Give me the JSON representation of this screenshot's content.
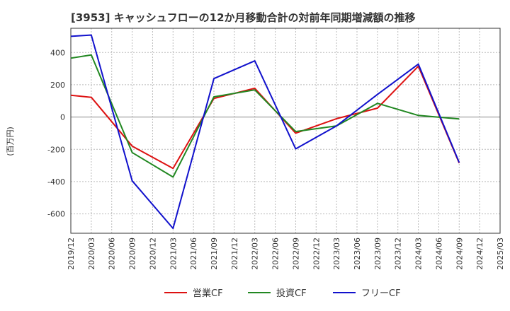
{
  "chart_data": {
    "type": "line",
    "title": "[3953]  キャッシュフローの12か月移動合計の対前年同期増減額の推移",
    "ylabel": "(百万円)",
    "xlabel": "",
    "ylim": [
      -720,
      550
    ],
    "yticks": [
      -600,
      -400,
      -200,
      0,
      200,
      400
    ],
    "grid": true,
    "legend_position": "bottom",
    "x": [
      "2019/12",
      "2020/03",
      "2020/06",
      "2020/09",
      "2020/12",
      "2021/03",
      "2021/06",
      "2021/09",
      "2021/12",
      "2022/03",
      "2022/06",
      "2022/09",
      "2022/12",
      "2023/03",
      "2023/06",
      "2023/09",
      "2023/12",
      "2024/03",
      "2024/06",
      "2024/09",
      "2024/12",
      "2025/03"
    ],
    "series": [
      {
        "name": "営業CF",
        "color": "#dd1111",
        "values": [
          135,
          122,
          null,
          -180,
          null,
          -318,
          null,
          115,
          null,
          178,
          null,
          -100,
          null,
          -10,
          null,
          55,
          null,
          315,
          null,
          -285,
          null,
          null
        ]
      },
      {
        "name": "投資CF",
        "color": "#228822",
        "values": [
          365,
          385,
          null,
          -220,
          null,
          -372,
          null,
          125,
          null,
          168,
          null,
          -90,
          null,
          -55,
          null,
          85,
          null,
          10,
          null,
          -12,
          null,
          null
        ]
      },
      {
        "name": "フリーCF",
        "color": "#1111cc",
        "values": [
          500,
          508,
          null,
          -395,
          null,
          -690,
          null,
          238,
          null,
          348,
          null,
          -197,
          null,
          -55,
          null,
          140,
          null,
          328,
          null,
          -282,
          null,
          null
        ]
      }
    ]
  }
}
